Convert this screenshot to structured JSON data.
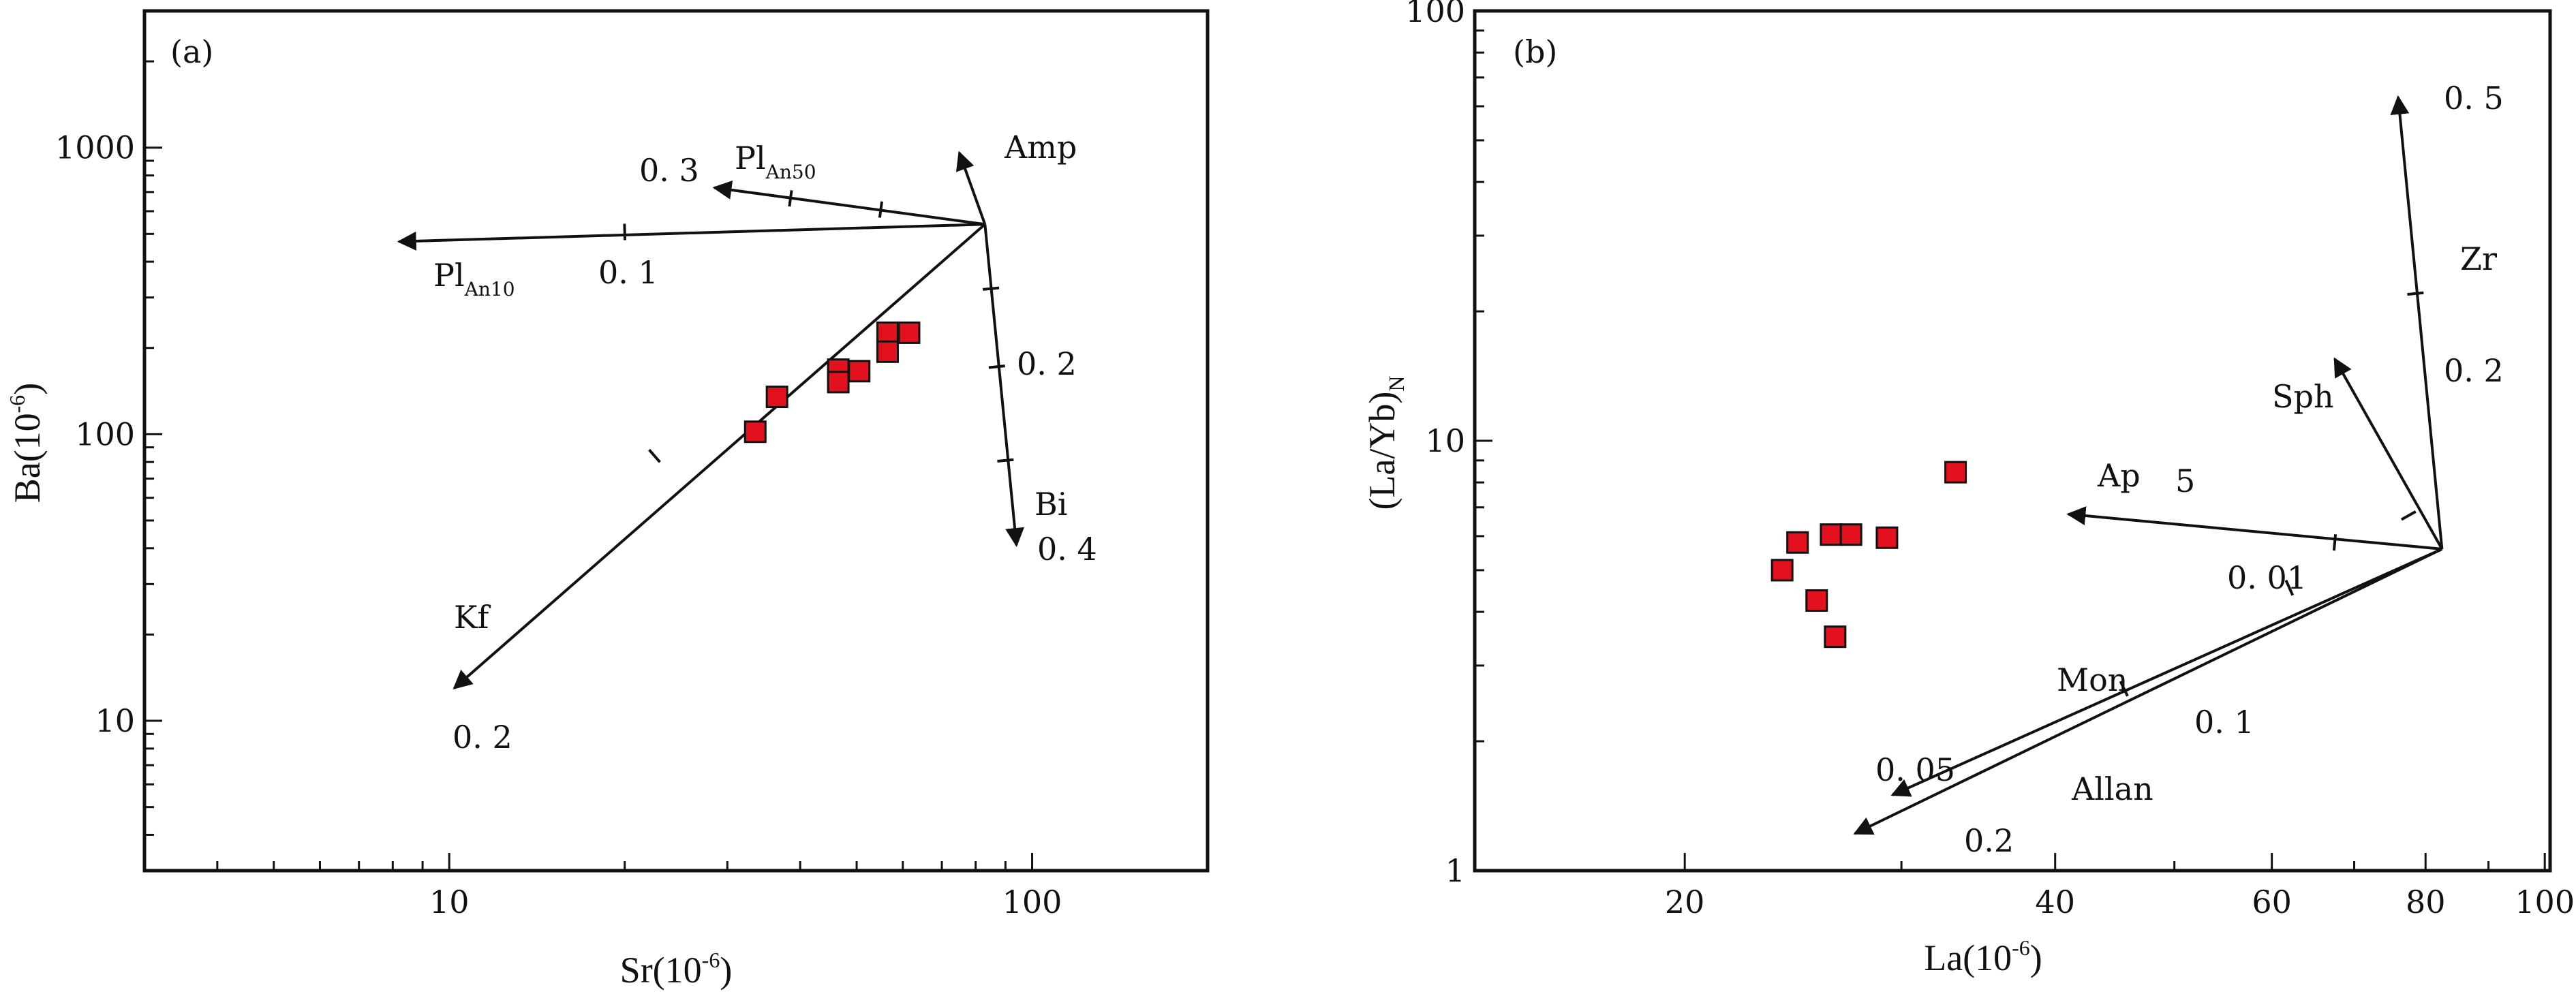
{
  "chart_data": [
    {
      "panel": "(a)",
      "type": "scatter",
      "title": "",
      "xlabel": "Sr(10",
      "xlabel_sup": "-6",
      "xlabel_close": ")",
      "ylabel": "Ba(10",
      "ylabel_sup": "-6",
      "ylabel_close": ")",
      "x_scale": "log",
      "y_scale": "log",
      "xlim": [
        3,
        200
      ],
      "ylim": [
        3,
        3000
      ],
      "x_ticks": [
        10,
        100
      ],
      "x_tick_labels": [
        "10",
        "100"
      ],
      "y_ticks": [
        10,
        100,
        1000
      ],
      "y_tick_labels": [
        "10",
        "100",
        "1000"
      ],
      "grid": false,
      "points": [
        {
          "x": 33.5,
          "y": 102
        },
        {
          "x": 36.5,
          "y": 135
        },
        {
          "x": 46.5,
          "y": 168
        },
        {
          "x": 46.5,
          "y": 152
        },
        {
          "x": 50.5,
          "y": 166
        },
        {
          "x": 56.5,
          "y": 226
        },
        {
          "x": 56.5,
          "y": 194
        },
        {
          "x": 61.5,
          "y": 226
        }
      ],
      "marker_color": "#e3101d",
      "vectors": [
        {
          "name": "Pl",
          "subscript": "An10",
          "value_label": "0. 1",
          "from": [
            83,
            540
          ],
          "to": [
            8.2,
            470
          ],
          "ticks": [
            [
              20,
              508
            ]
          ]
        },
        {
          "name": "Pl",
          "subscript": "An50",
          "value_label": "0. 3",
          "from": [
            83,
            540
          ],
          "to": [
            28.5,
            725
          ],
          "ticks": [
            [
              38.5,
              665
            ],
            [
              55,
              608
            ]
          ]
        },
        {
          "name": "Amp",
          "value_label": "",
          "from": [
            83,
            540
          ],
          "to": [
            75,
            960
          ],
          "ticks": []
        },
        {
          "name": "Bi",
          "value_label": "0. 2",
          "end_label": "0. 4",
          "from": [
            83,
            540
          ],
          "to": [
            94,
            41
          ],
          "ticks": [
            [
              85,
              322
            ],
            [
              87,
              172
            ],
            [
              90,
              81
            ]
          ]
        },
        {
          "name": "Kf",
          "value_label": "0. 2",
          "from": [
            83,
            540
          ],
          "to": [
            10.2,
            13
          ],
          "ticks": [
            [
              22.5,
              84
            ]
          ]
        }
      ]
    },
    {
      "panel": "(b)",
      "type": "scatter",
      "title": "",
      "xlabel": "La(10",
      "xlabel_sup": "-6",
      "xlabel_close": ")",
      "ylabel": "(La/Yb)",
      "ylabel_sub": "N",
      "x_scale": "log",
      "y_scale": "log",
      "xlim": [
        13.5,
        101
      ],
      "ylim": [
        1,
        100
      ],
      "x_ticks": [
        20,
        40,
        60,
        80,
        100
      ],
      "x_tick_labels": [
        "20",
        "40",
        "60",
        "80",
        "100"
      ],
      "y_ticks": [
        1,
        10,
        100
      ],
      "y_tick_labels": [
        "1",
        "10",
        "100"
      ],
      "grid": false,
      "points": [
        {
          "x": 24.0,
          "y": 5.0
        },
        {
          "x": 24.7,
          "y": 5.8
        },
        {
          "x": 25.6,
          "y": 4.25
        },
        {
          "x": 26.3,
          "y": 6.05
        },
        {
          "x": 26.5,
          "y": 3.5
        },
        {
          "x": 27.3,
          "y": 6.05
        },
        {
          "x": 29.2,
          "y": 5.95
        },
        {
          "x": 33.2,
          "y": 8.45
        }
      ],
      "marker_color": "#e3101d",
      "vectors": [
        {
          "name": "Zr",
          "value_label": "0. 5",
          "mid_label": "0. 2",
          "from": [
            82.5,
            5.6
          ],
          "to": [
            76,
            63
          ],
          "ticks": [
            [
              78.5,
              22
            ]
          ]
        },
        {
          "name": "Sph",
          "value_label": "",
          "from": [
            82.5,
            5.6
          ],
          "to": [
            67.5,
            15.5
          ],
          "ticks": [
            [
              77.5,
              6.7
            ]
          ]
        },
        {
          "name": "Ap",
          "value_label": "5",
          "from": [
            82.5,
            5.6
          ],
          "to": [
            41,
            6.75
          ],
          "ticks": [
            [
              67.5,
              5.8
            ]
          ]
        },
        {
          "name": "Mon",
          "value_label": "0. 05",
          "from": [
            82.5,
            5.6
          ],
          "to": [
            29.5,
            1.5
          ],
          "ticks": [
            [
              62,
              4.55
            ]
          ]
        },
        {
          "name": "Allan",
          "value_label": "0.2",
          "mid_label": "0. 1",
          "from": [
            82.5,
            5.6
          ],
          "to": [
            27.5,
            1.22
          ],
          "ticks": [
            [
              45.5,
              2.65
            ]
          ]
        },
        {
          "name": "",
          "value_label": "0. 01",
          "from": [
            82.5,
            5.6
          ],
          "to": [
            82.5,
            5.6
          ],
          "ticks": []
        }
      ]
    }
  ]
}
